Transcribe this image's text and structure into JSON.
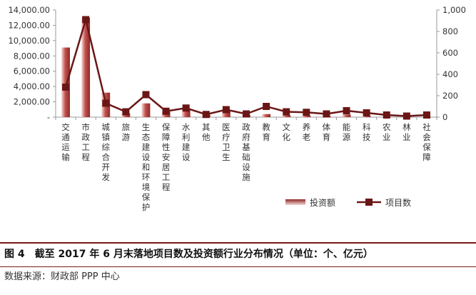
{
  "chart_data": {
    "type": "bar+line",
    "categories": [
      "交通运输",
      "市政工程",
      "城镇综合开发",
      "旅游",
      "生态建设和环境保护",
      "保障性安居工程",
      "水利建设",
      "其他",
      "医疗卫生",
      "政府基础设施",
      "教育",
      "文化",
      "养老",
      "体育",
      "能源",
      "科技",
      "农业",
      "林业",
      "社会保障"
    ],
    "series": [
      {
        "name": "投资额",
        "axis": "left",
        "type": "bar",
        "values": [
          9100,
          13000,
          3200,
          500,
          1800,
          700,
          900,
          300,
          900,
          250,
          400,
          250,
          200,
          150,
          350,
          150,
          80,
          60,
          50
        ]
      },
      {
        "name": "项目数",
        "axis": "right",
        "type": "line",
        "values": [
          280,
          910,
          130,
          50,
          210,
          55,
          85,
          25,
          70,
          30,
          100,
          50,
          45,
          30,
          60,
          40,
          20,
          10,
          20
        ]
      }
    ],
    "y_left": {
      "min": 0,
      "max": 14000,
      "ticks": [
        "-",
        "2,000.00",
        "4,000.00",
        "6,000.00",
        "8,000.00",
        "10,000.00",
        "12,000.00",
        "14,000.00"
      ]
    },
    "y_right": {
      "min": 0,
      "max": 1000,
      "ticks": [
        "0",
        "200",
        "400",
        "600",
        "800",
        "1,000"
      ]
    },
    "legend": [
      "投资额",
      "项目数"
    ],
    "legend_position": "bottom-right",
    "colors": {
      "bar": "#c0504d",
      "bar_light": "#f2dcdb",
      "line": "#6b1616",
      "axis": "#999999"
    }
  },
  "caption": {
    "title": "图 4　截至 2017 年 6 月末落地项目数及投资额行业分布情况（单位：个、亿元）",
    "source": "数据来源：财政部 PPP 中心"
  }
}
